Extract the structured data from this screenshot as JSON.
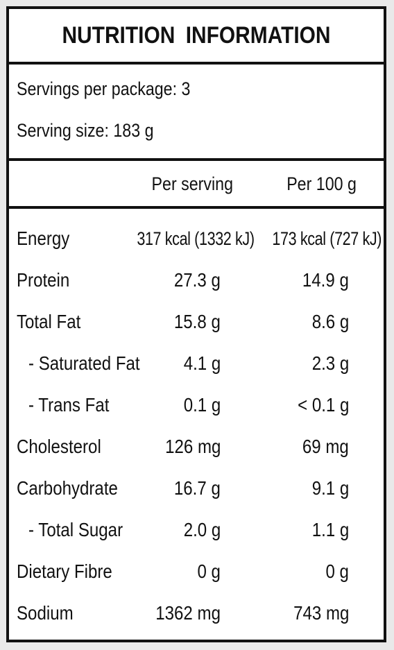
{
  "title": "NUTRITION  INFORMATION",
  "servings_per_package": "Servings per package: 3",
  "serving_size": "Serving size: 183 g",
  "columns": {
    "per_serving": "Per serving",
    "per_100g": "Per 100 g"
  },
  "rows": [
    {
      "name": "Energy",
      "sub": false,
      "per_serving": "317 kcal (1332 kJ)",
      "per_100g": "173 kcal (727 kJ)"
    },
    {
      "name": "Protein",
      "sub": false,
      "per_serving": "27.3 g",
      "per_100g": "14.9 g"
    },
    {
      "name": "Total Fat",
      "sub": false,
      "per_serving": "15.8 g",
      "per_100g": "8.6 g"
    },
    {
      "name": "-  Saturated Fat",
      "sub": true,
      "per_serving": "4.1 g",
      "per_100g": "2.3 g"
    },
    {
      "name": "-  Trans Fat",
      "sub": true,
      "per_serving": "0.1 g",
      "per_100g": "< 0.1 g"
    },
    {
      "name": "Cholesterol",
      "sub": false,
      "per_serving": "126 mg",
      "per_100g": "69 mg"
    },
    {
      "name": "Carbohydrate",
      "sub": false,
      "per_serving": "16.7 g",
      "per_100g": "9.1 g"
    },
    {
      "name": "-  Total Sugar",
      "sub": true,
      "per_serving": "2.0 g",
      "per_100g": "1.1 g"
    },
    {
      "name": "Dietary Fibre",
      "sub": false,
      "per_serving": "0 g",
      "per_100g": "0 g"
    },
    {
      "name": "Sodium",
      "sub": false,
      "per_serving": "1362 mg",
      "per_100g": "743 mg"
    }
  ]
}
